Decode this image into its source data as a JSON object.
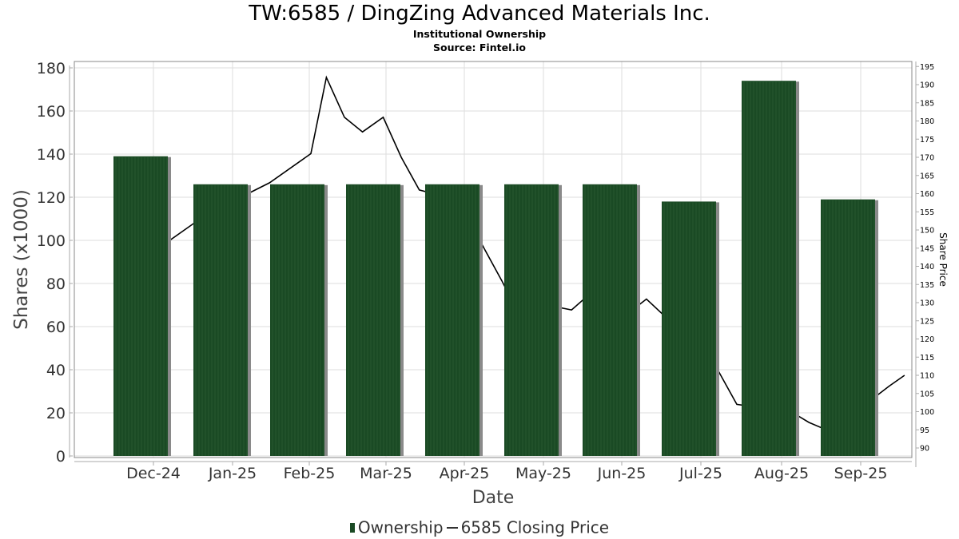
{
  "header": {
    "title": "TW:6585 / DingZing Advanced Materials Inc.",
    "subtitle": "Institutional Ownership",
    "source": "Source: Fintel.io"
  },
  "legend": {
    "ownership": "Ownership",
    "price": "6585 Closing Price"
  },
  "colors": {
    "bar": "#1a4a24",
    "bar_shadow": "#8a8a8a",
    "price_line": "#000000",
    "grid": "#dddddd"
  },
  "chart_data": {
    "type": "bar",
    "title": "TW:6585 / DingZing Advanced Materials Inc.",
    "xlabel": "Date",
    "ylabel": "Shares (x1000)",
    "y2label": "Share Price",
    "ylim": [
      0,
      180
    ],
    "y2lim": [
      87,
      196
    ],
    "grid": true,
    "legend_position": "bottom-center",
    "yticks": [
      0,
      20,
      40,
      60,
      80,
      100,
      120,
      140,
      160,
      180
    ],
    "y2ticks": [
      90,
      95,
      100,
      105,
      110,
      115,
      120,
      125,
      130,
      135,
      140,
      145,
      150,
      155,
      160,
      165,
      170,
      175,
      180,
      185,
      190,
      195
    ],
    "categories": [
      "Dec-24",
      "Jan-25",
      "Feb-25",
      "Mar-25",
      "Apr-25",
      "May-25",
      "Jun-25",
      "Jul-25",
      "Aug-25",
      "Sep-25"
    ],
    "series": [
      {
        "name": "Ownership",
        "type": "bar",
        "axis": "left",
        "values": [
          139,
          126,
          126,
          126,
          126,
          126,
          126,
          118,
          174,
          119
        ]
      },
      {
        "name": "6585 Closing Price",
        "type": "line",
        "axis": "right",
        "points": [
          {
            "x": "2024-11-25",
            "y": 142
          },
          {
            "x": "2024-12-03",
            "y": 145
          },
          {
            "x": "2024-12-17",
            "y": 152
          },
          {
            "x": "2025-01-01",
            "y": 158
          },
          {
            "x": "2025-01-15",
            "y": 163
          },
          {
            "x": "2025-01-31",
            "y": 171
          },
          {
            "x": "2025-02-06",
            "y": 192
          },
          {
            "x": "2025-02-13",
            "y": 181
          },
          {
            "x": "2025-02-20",
            "y": 177
          },
          {
            "x": "2025-02-28",
            "y": 181
          },
          {
            "x": "2025-03-07",
            "y": 170
          },
          {
            "x": "2025-03-14",
            "y": 161
          },
          {
            "x": "2025-03-25",
            "y": 159
          },
          {
            "x": "2025-04-05",
            "y": 149
          },
          {
            "x": "2025-04-15",
            "y": 136
          },
          {
            "x": "2025-04-25",
            "y": 122
          },
          {
            "x": "2025-05-05",
            "y": 129
          },
          {
            "x": "2025-05-12",
            "y": 128
          },
          {
            "x": "2025-05-20",
            "y": 133
          },
          {
            "x": "2025-06-01",
            "y": 126
          },
          {
            "x": "2025-06-10",
            "y": 131
          },
          {
            "x": "2025-06-25",
            "y": 121
          },
          {
            "x": "2025-07-01",
            "y": 120
          },
          {
            "x": "2025-07-15",
            "y": 102
          },
          {
            "x": "2025-07-25",
            "y": 101
          },
          {
            "x": "2025-08-05",
            "y": 100
          },
          {
            "x": "2025-08-12",
            "y": 97
          },
          {
            "x": "2025-08-22",
            "y": 94
          },
          {
            "x": "2025-09-01",
            "y": 101
          },
          {
            "x": "2025-09-12",
            "y": 107
          },
          {
            "x": "2025-09-18",
            "y": 110
          }
        ]
      }
    ]
  }
}
